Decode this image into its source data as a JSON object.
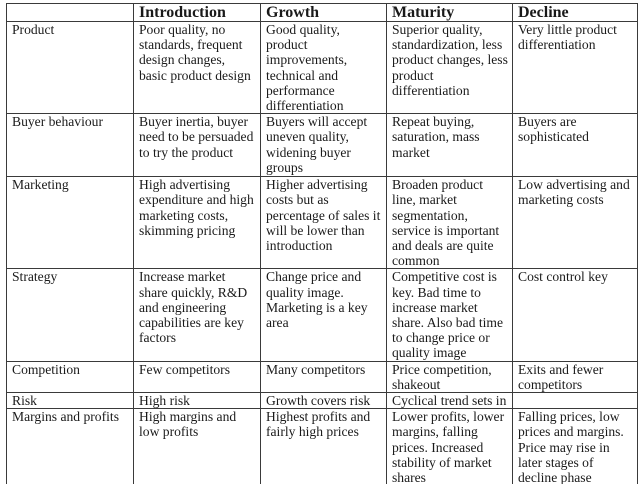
{
  "table": {
    "headers": [
      "",
      "Introduction",
      "Growth",
      "Maturity",
      "Decline"
    ],
    "rows": [
      {
        "label": "Product",
        "introduction": "Poor quality, no standards, frequent design changes, basic product design",
        "growth": "Good quality, product improvements, technical and performance differentiation",
        "maturity": "Superior quality, standardization, less product changes, less product differentiation",
        "decline": "Very little product differentiation"
      },
      {
        "label": "Buyer behaviour",
        "introduction": "Buyer inertia, buyer need to be persuaded to try the product",
        "growth": "Buyers will accept uneven quality, widening buyer groups",
        "maturity": "Repeat buying, saturation, mass market",
        "decline": "Buyers are sophisticated"
      },
      {
        "label": "Marketing",
        "introduction": "High advertising expenditure and high marketing costs, skimming pricing",
        "growth": "Higher advertising costs but as percentage of sales it will be lower than introduction",
        "maturity": "Broaden product line, market segmentation, service is important and deals are quite common",
        "decline": "Low advertising and marketing costs"
      },
      {
        "label": "Strategy",
        "introduction": "Increase market share quickly, R&D and engineering capabilities are key factors",
        "growth": "Change price and quality image. Marketing is a key area",
        "maturity": "Competitive cost is key. Bad time to increase market share. Also bad time to change price or quality image",
        "decline": "Cost control key"
      },
      {
        "label": "Competition",
        "introduction": "Few competitors",
        "growth": "Many competitors",
        "maturity": "Price competition, shakeout",
        "decline": "Exits and fewer competitors"
      },
      {
        "label": "Risk",
        "introduction": "High risk",
        "growth": "Growth covers risk",
        "maturity": "Cyclical trend sets in",
        "decline": ""
      },
      {
        "label": "Margins and profits",
        "introduction": "High margins and low profits",
        "growth": "Highest profits and fairly high prices",
        "maturity": "Lower profits, lower margins, falling prices. Increased stability of market shares",
        "decline": "Falling prices, low prices and margins. Price may rise in later stages of decline phase"
      }
    ]
  }
}
